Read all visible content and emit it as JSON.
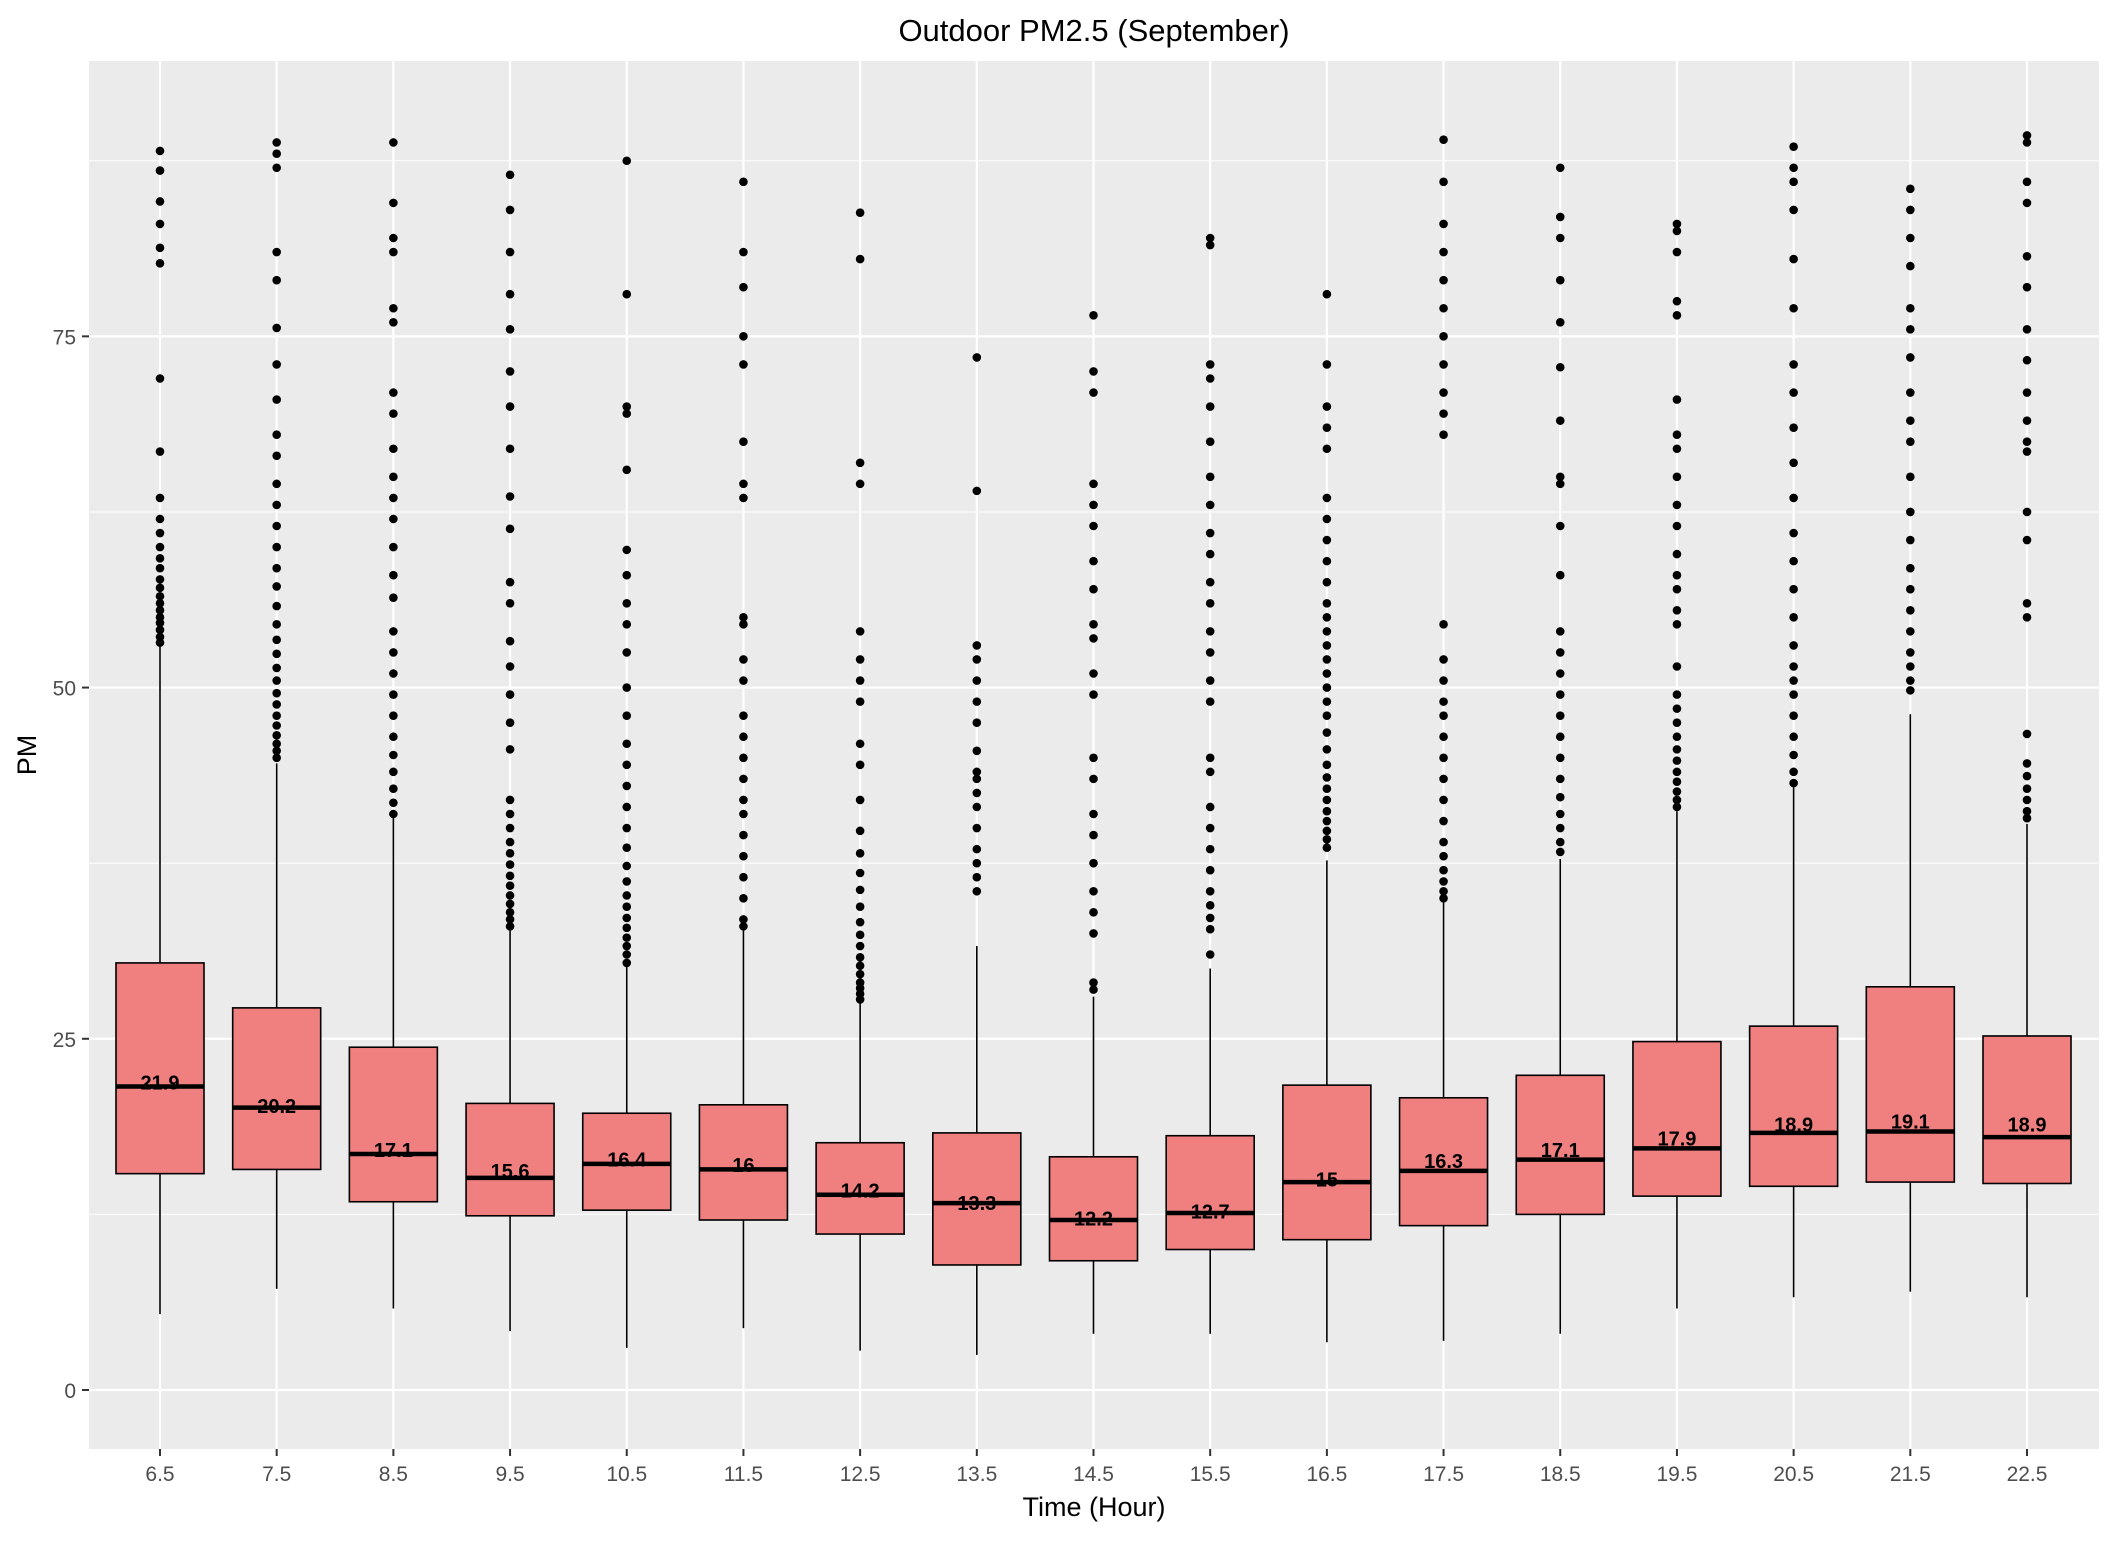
{
  "chart_data": {
    "type": "boxplot",
    "title": "Outdoor PM2.5 (September)",
    "xlabel": "Time (Hour)",
    "ylabel": "PM",
    "categories": [
      "6.5",
      "7.5",
      "8.5",
      "9.5",
      "10.5",
      "11.5",
      "12.5",
      "13.5",
      "14.5",
      "15.5",
      "16.5",
      "17.5",
      "18.5",
      "19.5",
      "20.5",
      "21.5",
      "22.5"
    ],
    "ylim": [
      -4.2,
      94.6
    ],
    "yticks": [
      0,
      25,
      50,
      75
    ],
    "ytick_labels": [
      "0",
      "25",
      "50",
      "75"
    ],
    "grid": true,
    "fill_color": "#F08080",
    "panel_color": "#EBEBEB",
    "mean_labels": [
      "21.9",
      "20.2",
      "17.1",
      "15.6",
      "16.4",
      "16",
      "14.2",
      "13.3",
      "12.2",
      "12.7",
      "15",
      "16.3",
      "17.1",
      "17.9",
      "18.9",
      "19.1",
      "18.9"
    ],
    "boxes": [
      {
        "x": "6.5",
        "whisker_low": 5.4,
        "q1": 15.4,
        "median": 21.6,
        "q3": 30.4,
        "whisker_high": 53.0,
        "mean": 21.9,
        "outliers": [
          53.2,
          53.6,
          54.1,
          54.6,
          55.0,
          55.5,
          56.0,
          56.5,
          57.1,
          57.7,
          58.5,
          59.2,
          60.0,
          61.0,
          62.0,
          63.5,
          66.8,
          72.0,
          80.2,
          81.3,
          83.0,
          84.6,
          86.8,
          88.2
        ]
      },
      {
        "x": "7.5",
        "whisker_low": 7.2,
        "q1": 15.7,
        "median": 20.1,
        "q3": 27.2,
        "whisker_high": 44.6,
        "mean": 20.2,
        "outliers": [
          45.0,
          45.5,
          46.0,
          46.6,
          47.3,
          48.0,
          48.8,
          49.6,
          50.5,
          51.4,
          52.4,
          53.4,
          54.5,
          55.8,
          57.2,
          58.5,
          60.0,
          61.5,
          63.0,
          64.5,
          66.5,
          68.0,
          70.5,
          73.0,
          75.6,
          79.0,
          81.0,
          87.0,
          88.0,
          88.8
        ]
      },
      {
        "x": "8.5",
        "whisker_low": 5.8,
        "q1": 13.4,
        "median": 16.8,
        "q3": 24.4,
        "whisker_high": 40.8,
        "mean": 17.1,
        "outliers": [
          41.0,
          41.8,
          42.8,
          44.0,
          45.2,
          46.5,
          48.0,
          49.5,
          51.0,
          52.5,
          54.0,
          56.4,
          58.0,
          60.0,
          62.0,
          63.5,
          65.0,
          67.0,
          69.5,
          71.0,
          76.0,
          77.0,
          81.0,
          82.0,
          84.5,
          88.8
        ]
      },
      {
        "x": "9.5",
        "whisker_low": 4.2,
        "q1": 12.4,
        "median": 15.1,
        "q3": 20.4,
        "whisker_high": 32.8,
        "mean": 15.6,
        "outliers": [
          33.0,
          33.5,
          34.0,
          34.6,
          35.2,
          35.9,
          36.6,
          37.4,
          38.2,
          39.0,
          40.0,
          41.0,
          42.0,
          45.6,
          47.5,
          49.5,
          51.5,
          53.3,
          56.0,
          57.5,
          61.3,
          63.6,
          67.0,
          70.0,
          72.5,
          75.5,
          78.0,
          81.0,
          84.0,
          86.5
        ]
      },
      {
        "x": "10.5",
        "whisker_low": 3.0,
        "q1": 12.8,
        "median": 16.1,
        "q3": 19.7,
        "whisker_high": 30.2,
        "mean": 16.4,
        "outliers": [
          30.4,
          31.0,
          31.6,
          32.2,
          32.9,
          33.6,
          34.4,
          35.2,
          36.2,
          37.3,
          38.6,
          40.0,
          41.5,
          43.0,
          44.5,
          46.0,
          48.0,
          50.0,
          52.5,
          54.5,
          56.0,
          58.0,
          59.8,
          65.5,
          69.5,
          70.0,
          78.0,
          87.5
        ]
      },
      {
        "x": "11.5",
        "whisker_low": 4.4,
        "q1": 12.1,
        "median": 15.7,
        "q3": 20.3,
        "whisker_high": 32.7,
        "mean": 16.0,
        "outliers": [
          33.0,
          33.5,
          35.0,
          36.5,
          38.0,
          39.5,
          41.0,
          42.0,
          43.5,
          45.0,
          46.5,
          48.0,
          50.5,
          52.0,
          54.5,
          55.0,
          63.5,
          64.5,
          67.5,
          73.0,
          75.0,
          78.5,
          81.0,
          86.0
        ]
      },
      {
        "x": "12.5",
        "whisker_low": 2.8,
        "q1": 11.1,
        "median": 13.9,
        "q3": 17.6,
        "whisker_high": 27.6,
        "mean": 14.2,
        "outliers": [
          27.8,
          28.2,
          28.6,
          29.0,
          29.6,
          30.2,
          30.8,
          31.6,
          32.4,
          33.3,
          34.4,
          35.6,
          36.8,
          38.2,
          39.8,
          42.0,
          44.5,
          46.0,
          49.0,
          50.5,
          52.0,
          54.0,
          64.5,
          66.0,
          80.5,
          83.8
        ]
      },
      {
        "x": "13.5",
        "whisker_low": 2.5,
        "q1": 8.9,
        "median": 13.3,
        "q3": 18.3,
        "whisker_high": 31.6,
        "mean": 13.3,
        "outliers": [
          35.5,
          36.5,
          37.5,
          38.5,
          40.0,
          41.5,
          42.5,
          43.5,
          44.0,
          45.5,
          47.5,
          49.0,
          50.5,
          52.0,
          53.0,
          64.0,
          73.5
        ]
      },
      {
        "x": "14.5",
        "whisker_low": 4.0,
        "q1": 9.2,
        "median": 12.1,
        "q3": 16.6,
        "whisker_high": 28.0,
        "mean": 12.2,
        "outliers": [
          28.5,
          29.0,
          32.5,
          34.0,
          35.5,
          37.5,
          39.5,
          41.0,
          43.5,
          45.0,
          49.5,
          51.0,
          53.5,
          54.5,
          57.0,
          59.0,
          61.5,
          63.0,
          64.5,
          71.0,
          72.5,
          76.5
        ]
      },
      {
        "x": "15.5",
        "whisker_low": 4.0,
        "q1": 10.0,
        "median": 12.6,
        "q3": 18.1,
        "whisker_high": 30.0,
        "mean": 12.7,
        "outliers": [
          31.0,
          32.8,
          33.6,
          34.5,
          35.5,
          37.0,
          38.5,
          40.0,
          41.5,
          44.0,
          45.0,
          49.0,
          50.5,
          52.5,
          54.0,
          56.0,
          57.5,
          59.5,
          61.0,
          63.0,
          65.0,
          67.5,
          70.0,
          72.0,
          73.0,
          81.5,
          82.0
        ]
      },
      {
        "x": "16.5",
        "whisker_low": 3.4,
        "q1": 10.7,
        "median": 14.8,
        "q3": 21.7,
        "whisker_high": 37.7,
        "mean": 15.0,
        "outliers": [
          38.6,
          39.2,
          39.8,
          40.5,
          41.2,
          42.0,
          42.8,
          43.6,
          44.5,
          45.6,
          46.8,
          48.0,
          49.0,
          50.0,
          51.0,
          52.0,
          53.0,
          54.0,
          55.0,
          56.0,
          57.5,
          59.0,
          60.5,
          62.0,
          63.5,
          67.0,
          68.5,
          70.0,
          73.0,
          78.0
        ]
      },
      {
        "x": "17.5",
        "whisker_low": 3.5,
        "q1": 11.7,
        "median": 15.6,
        "q3": 20.8,
        "whisker_high": 34.7,
        "mean": 16.3,
        "outliers": [
          35.0,
          35.5,
          36.2,
          37.0,
          38.0,
          39.0,
          40.5,
          42.0,
          43.5,
          45.0,
          46.5,
          48.0,
          49.0,
          50.5,
          52.0,
          54.5,
          68.0,
          69.5,
          71.0,
          73.0,
          75.0,
          77.0,
          79.0,
          81.0,
          83.0,
          86.0,
          89.0
        ]
      },
      {
        "x": "18.5",
        "whisker_low": 4.0,
        "q1": 12.5,
        "median": 16.4,
        "q3": 22.4,
        "whisker_high": 37.8,
        "mean": 17.1,
        "outliers": [
          38.3,
          39.0,
          40.0,
          41.0,
          42.2,
          43.5,
          45.0,
          46.5,
          48.0,
          49.5,
          51.0,
          52.5,
          54.0,
          58.0,
          61.5,
          64.5,
          65.0,
          69.0,
          72.8,
          76.0,
          79.0,
          82.0,
          83.5,
          87.0
        ]
      },
      {
        "x": "19.5",
        "whisker_low": 5.8,
        "q1": 13.8,
        "median": 17.2,
        "q3": 24.8,
        "whisker_high": 41.2,
        "mean": 17.9,
        "outliers": [
          41.5,
          42.0,
          42.6,
          43.3,
          44.0,
          44.8,
          45.6,
          46.5,
          47.5,
          48.5,
          49.5,
          51.5,
          54.5,
          55.5,
          57.0,
          58.0,
          59.5,
          61.5,
          63.0,
          65.0,
          67.0,
          68.0,
          70.5,
          76.5,
          77.5,
          81.0,
          82.5,
          83.0
        ]
      },
      {
        "x": "20.5",
        "whisker_low": 6.6,
        "q1": 14.5,
        "median": 18.3,
        "q3": 25.9,
        "whisker_high": 42.9,
        "mean": 18.9,
        "outliers": [
          43.2,
          44.0,
          45.2,
          46.5,
          48.0,
          49.5,
          50.5,
          51.5,
          53.0,
          55.0,
          57.0,
          59.0,
          61.0,
          63.5,
          66.0,
          68.5,
          71.0,
          73.0,
          77.0,
          80.5,
          84.0,
          86.0,
          87.0,
          88.5
        ]
      },
      {
        "x": "21.5",
        "whisker_low": 7.0,
        "q1": 14.8,
        "median": 18.4,
        "q3": 28.7,
        "whisker_high": 48.1,
        "mean": 19.1,
        "outliers": [
          49.8,
          50.5,
          51.5,
          52.5,
          54.0,
          55.5,
          57.0,
          58.5,
          60.5,
          62.5,
          65.0,
          67.5,
          69.0,
          71.0,
          73.5,
          75.5,
          77.0,
          80.0,
          82.0,
          84.0,
          85.5
        ]
      },
      {
        "x": "22.5",
        "whisker_low": 6.6,
        "q1": 14.7,
        "median": 18.0,
        "q3": 25.2,
        "whisker_high": 40.3,
        "mean": 18.9,
        "outliers": [
          40.7,
          41.2,
          42.0,
          42.8,
          43.7,
          44.6,
          46.7,
          55.0,
          56.0,
          60.5,
          62.5,
          66.8,
          67.5,
          69.0,
          71.0,
          73.3,
          75.5,
          78.5,
          80.7,
          84.5,
          86.0,
          88.8,
          89.3
        ]
      }
    ]
  }
}
